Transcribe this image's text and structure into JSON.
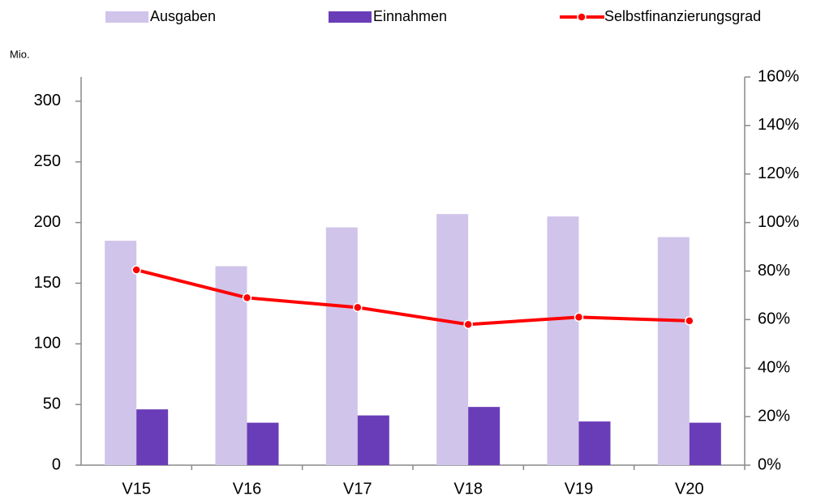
{
  "chart_data": {
    "type": "bar",
    "y_label": "Mio.",
    "categories": [
      "V15",
      "V16",
      "V17",
      "V18",
      "V19",
      "V20"
    ],
    "series": [
      {
        "name": "Ausgaben",
        "color": "#d0c4ea",
        "values": [
          185,
          164,
          196,
          207,
          205,
          188
        ]
      },
      {
        "name": "Einnahmen",
        "color": "#6a3db8",
        "values": [
          46,
          35,
          41,
          48,
          36,
          35
        ]
      },
      {
        "name": "Selbstfinanzierungsgrad",
        "color": "#ff0000",
        "type": "line",
        "axis": "y2",
        "values": [
          80.5,
          69,
          65,
          58,
          61,
          59.5
        ]
      }
    ],
    "ylim": [
      0,
      320
    ],
    "yticks": [
      0,
      50,
      100,
      150,
      200,
      250,
      300
    ],
    "y2lim": [
      0,
      160
    ],
    "y2ticks": [
      {
        "value": 0,
        "label": "0%"
      },
      {
        "value": 20,
        "label": "20%"
      },
      {
        "value": 40,
        "label": "40%"
      },
      {
        "value": 60,
        "label": "60%"
      },
      {
        "value": 80,
        "label": "80%"
      },
      {
        "value": 100,
        "label": "100%"
      },
      {
        "value": 120,
        "label": "120%"
      },
      {
        "value": 140,
        "label": "140%"
      },
      {
        "value": 160,
        "label": "160%"
      }
    ],
    "grid": false,
    "legend": "top"
  }
}
